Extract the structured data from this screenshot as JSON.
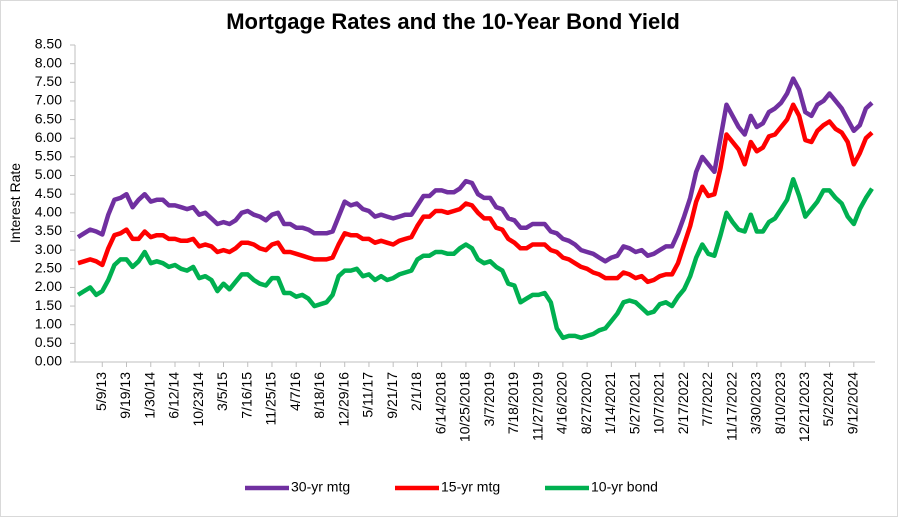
{
  "chart_data": {
    "type": "line",
    "title": "Mortgage Rates and the 10-Year Bond Yield",
    "ylabel": "Interest Rate",
    "ylim": [
      0,
      8.5
    ],
    "yticks": [
      {
        "value": 0,
        "label": "0.00"
      },
      {
        "value": 0.5,
        "label": "0.50"
      },
      {
        "value": 1,
        "label": "1.00"
      },
      {
        "value": 1.5,
        "label": "1.50"
      },
      {
        "value": 2,
        "label": "2.00"
      },
      {
        "value": 2.5,
        "label": "2.50"
      },
      {
        "value": 3,
        "label": "3.00"
      },
      {
        "value": 3.5,
        "label": "3.50"
      },
      {
        "value": 4,
        "label": "4.00"
      },
      {
        "value": 4.5,
        "label": "4.50"
      },
      {
        "value": 5,
        "label": "5.00"
      },
      {
        "value": 5.5,
        "label": "5.50"
      },
      {
        "value": 6,
        "label": "6.00"
      },
      {
        "value": 6.5,
        "label": "6.50"
      },
      {
        "value": 7,
        "label": "7.00"
      },
      {
        "value": 7.5,
        "label": "7.50"
      },
      {
        "value": 8,
        "label": "8.00"
      },
      {
        "value": 8.5,
        "label": "8.50"
      }
    ],
    "grid": false,
    "legend": "bottom",
    "categories": [
      null,
      null,
      null,
      null,
      "5/9/13",
      null,
      null,
      null,
      "9/19/13",
      null,
      null,
      null,
      "1/30/14",
      null,
      null,
      null,
      "6/12/14",
      null,
      null,
      null,
      "10/23/14",
      null,
      null,
      null,
      "3/5/15",
      null,
      null,
      null,
      "7/16/15",
      null,
      null,
      null,
      "11/25/15",
      null,
      null,
      null,
      "4/7/16",
      null,
      null,
      null,
      "8/18/16",
      null,
      null,
      null,
      "12/29/16",
      null,
      null,
      null,
      "5/11/17",
      null,
      null,
      null,
      "9/21/17",
      null,
      null,
      null,
      "2/1/18",
      null,
      null,
      null,
      "6/14/2018",
      null,
      null,
      null,
      "10/25/2018",
      null,
      null,
      null,
      "3/7/2019",
      null,
      null,
      null,
      "7/18/2019",
      null,
      null,
      null,
      "11/27/2019",
      null,
      null,
      null,
      "4/16/2020",
      null,
      null,
      null,
      "8/27/2020",
      null,
      null,
      null,
      "1/14/2021",
      null,
      null,
      null,
      "5/27/2021",
      null,
      null,
      null,
      "10/7/2021",
      null,
      null,
      null,
      "2/17/2022",
      null,
      null,
      null,
      "7/7/2022",
      null,
      null,
      null,
      "11/17/2022",
      null,
      null,
      null,
      "3/30/2023",
      null,
      null,
      null,
      "8/10/2023",
      null,
      null,
      null,
      "12/21/2023",
      null,
      null,
      null,
      "5/2/2024",
      null,
      null,
      null,
      "9/12/2024",
      null,
      null,
      null
    ],
    "series": [
      {
        "name": "30-yr mtg",
        "color": "#7030a0",
        "values": [
          3.35,
          3.45,
          3.55,
          3.5,
          3.42,
          3.95,
          4.35,
          4.4,
          4.5,
          4.15,
          4.35,
          4.5,
          4.3,
          4.35,
          4.35,
          4.2,
          4.2,
          4.15,
          4.1,
          4.15,
          3.95,
          4.0,
          3.85,
          3.7,
          3.75,
          3.7,
          3.8,
          4.0,
          4.05,
          3.95,
          3.9,
          3.8,
          3.95,
          4.0,
          3.7,
          3.7,
          3.6,
          3.6,
          3.55,
          3.45,
          3.45,
          3.45,
          3.5,
          3.9,
          4.3,
          4.2,
          4.25,
          4.1,
          4.05,
          3.9,
          3.95,
          3.9,
          3.85,
          3.9,
          3.95,
          3.95,
          4.2,
          4.45,
          4.45,
          4.6,
          4.6,
          4.55,
          4.55,
          4.65,
          4.85,
          4.8,
          4.5,
          4.4,
          4.4,
          4.15,
          4.1,
          3.85,
          3.8,
          3.6,
          3.6,
          3.7,
          3.7,
          3.7,
          3.5,
          3.45,
          3.3,
          3.25,
          3.15,
          3.0,
          2.95,
          2.9,
          2.8,
          2.7,
          2.8,
          2.85,
          3.1,
          3.05,
          2.95,
          3.0,
          2.85,
          2.9,
          3.0,
          3.1,
          3.1,
          3.45,
          3.9,
          4.4,
          5.1,
          5.5,
          5.3,
          5.1,
          6.0,
          6.9,
          6.6,
          6.3,
          6.1,
          6.6,
          6.3,
          6.4,
          6.7,
          6.8,
          6.95,
          7.2,
          7.6,
          7.3,
          6.7,
          6.6,
          6.9,
          7.0,
          7.2,
          7.0,
          6.8,
          6.5,
          6.2,
          6.35,
          6.8,
          6.95
        ]
      },
      {
        "name": "15-yr mtg",
        "color": "#ff0000",
        "values": [
          2.65,
          2.7,
          2.75,
          2.7,
          2.6,
          3.05,
          3.4,
          3.45,
          3.55,
          3.3,
          3.3,
          3.5,
          3.35,
          3.4,
          3.4,
          3.3,
          3.3,
          3.25,
          3.25,
          3.3,
          3.1,
          3.15,
          3.1,
          2.95,
          3.0,
          2.95,
          3.05,
          3.2,
          3.2,
          3.15,
          3.05,
          3.0,
          3.15,
          3.2,
          2.95,
          2.95,
          2.9,
          2.85,
          2.8,
          2.75,
          2.75,
          2.75,
          2.8,
          3.15,
          3.45,
          3.4,
          3.4,
          3.3,
          3.3,
          3.2,
          3.25,
          3.2,
          3.15,
          3.25,
          3.3,
          3.35,
          3.65,
          3.9,
          3.9,
          4.05,
          4.05,
          4.0,
          4.05,
          4.1,
          4.25,
          4.2,
          4.0,
          3.85,
          3.85,
          3.6,
          3.55,
          3.3,
          3.2,
          3.05,
          3.05,
          3.15,
          3.15,
          3.15,
          3.0,
          2.95,
          2.8,
          2.75,
          2.65,
          2.55,
          2.5,
          2.4,
          2.35,
          2.25,
          2.25,
          2.25,
          2.4,
          2.35,
          2.25,
          2.3,
          2.15,
          2.2,
          2.3,
          2.35,
          2.35,
          2.65,
          3.15,
          3.65,
          4.3,
          4.7,
          4.45,
          4.5,
          5.2,
          6.1,
          5.9,
          5.7,
          5.3,
          5.9,
          5.65,
          5.75,
          6.05,
          6.1,
          6.3,
          6.5,
          6.9,
          6.6,
          5.95,
          5.9,
          6.2,
          6.35,
          6.45,
          6.25,
          6.15,
          5.9,
          5.3,
          5.6,
          6.0,
          6.15
        ]
      },
      {
        "name": "10-yr bond",
        "color": "#00b050",
        "values": [
          1.8,
          1.9,
          2.0,
          1.8,
          1.9,
          2.2,
          2.6,
          2.75,
          2.75,
          2.55,
          2.7,
          2.95,
          2.65,
          2.7,
          2.65,
          2.55,
          2.6,
          2.5,
          2.45,
          2.55,
          2.25,
          2.3,
          2.2,
          1.9,
          2.1,
          1.95,
          2.15,
          2.35,
          2.35,
          2.2,
          2.1,
          2.05,
          2.25,
          2.25,
          1.85,
          1.85,
          1.75,
          1.8,
          1.7,
          1.5,
          1.55,
          1.6,
          1.8,
          2.3,
          2.45,
          2.45,
          2.5,
          2.3,
          2.35,
          2.2,
          2.3,
          2.2,
          2.25,
          2.35,
          2.4,
          2.45,
          2.75,
          2.85,
          2.85,
          2.95,
          2.95,
          2.9,
          2.9,
          3.05,
          3.15,
          3.05,
          2.75,
          2.65,
          2.7,
          2.55,
          2.45,
          2.1,
          2.05,
          1.6,
          1.7,
          1.8,
          1.8,
          1.85,
          1.6,
          0.9,
          0.65,
          0.7,
          0.7,
          0.65,
          0.7,
          0.75,
          0.85,
          0.9,
          1.1,
          1.3,
          1.6,
          1.65,
          1.6,
          1.45,
          1.3,
          1.35,
          1.55,
          1.6,
          1.5,
          1.75,
          1.95,
          2.3,
          2.8,
          3.15,
          2.9,
          2.85,
          3.4,
          4.0,
          3.75,
          3.55,
          3.5,
          3.95,
          3.5,
          3.5,
          3.75,
          3.85,
          4.1,
          4.35,
          4.9,
          4.45,
          3.9,
          4.1,
          4.3,
          4.6,
          4.6,
          4.4,
          4.25,
          3.9,
          3.7,
          4.1,
          4.4,
          4.65
        ]
      }
    ]
  }
}
